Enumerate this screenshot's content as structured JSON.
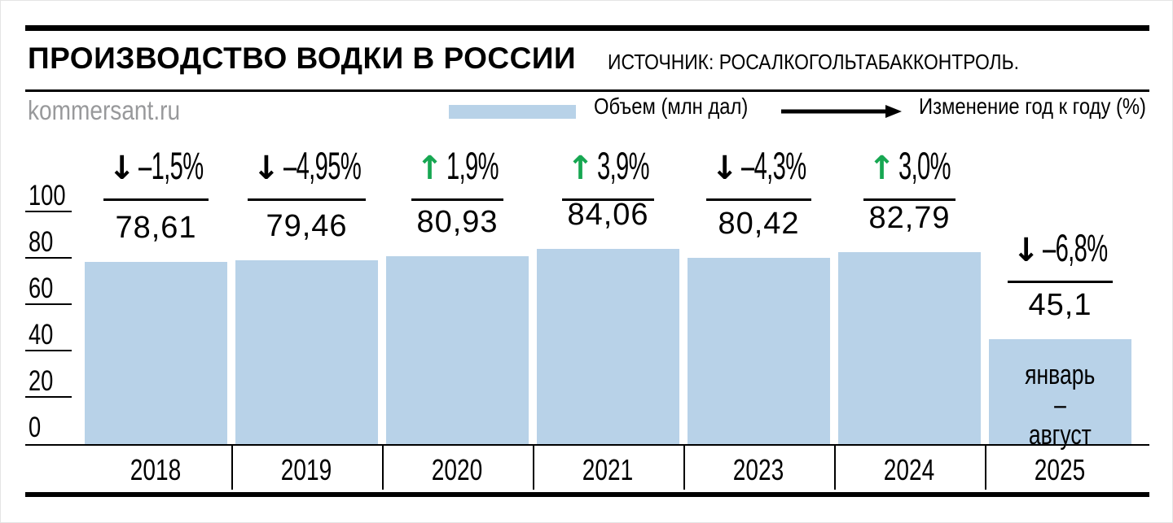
{
  "header": {
    "title": "ПРОИЗВОДСТВО ВОДКИ В РОССИИ",
    "source": "ИСТОЧНИК: РОСАЛКОГОЛЬТАБАККОНТРОЛЬ.",
    "site": "kommersant.ru"
  },
  "legend": {
    "volume_label": "Объем (млн дал)",
    "change_label": "Изменение год к году (%)",
    "volume_swatch_icon": "blue-bar-swatch",
    "change_icon": "right-arrow"
  },
  "colors": {
    "bar_fill": "#b8d2e8",
    "up_green": "#17a752",
    "down_black": "#000000",
    "site_gray": "#98999b"
  },
  "chart_data": {
    "type": "bar",
    "title": "ПРОИЗВОДСТВО ВОДКИ В РОССИИ",
    "ylabel": "Объем (млн дал)",
    "ylim": [
      0,
      100
    ],
    "yticks": [
      0,
      20,
      40,
      60,
      80,
      100
    ],
    "grid": "short-left-ticks",
    "legend_position": "top",
    "categories": [
      "2018",
      "2019",
      "2020",
      "2021",
      "2023",
      "2024",
      "2025"
    ],
    "values": [
      78.61,
      79.46,
      80.93,
      84.06,
      80.42,
      82.79,
      45.1
    ],
    "value_labels": [
      "78,61",
      "79,46",
      "80,93",
      "84,06",
      "80,42",
      "82,79",
      "45,1"
    ],
    "series": [
      {
        "name": "Объем (млн дал)",
        "values": [
          78.61,
          79.46,
          80.93,
          84.06,
          80.42,
          82.79,
          45.1
        ]
      },
      {
        "name": "Изменение год к году (%)",
        "values": [
          -1.5,
          -4.95,
          1.9,
          3.9,
          -4.3,
          3.0,
          -6.8
        ]
      }
    ],
    "change_labels": [
      "–1,5%",
      "–4,95%",
      "1,9%",
      "3,9%",
      "–4,3%",
      "3,0%",
      "–6,8%"
    ],
    "change_directions": [
      "down",
      "down",
      "up",
      "up",
      "down",
      "up",
      "down"
    ],
    "bar_note": {
      "index": 6,
      "lines": [
        "январь",
        "–",
        "август"
      ]
    }
  }
}
